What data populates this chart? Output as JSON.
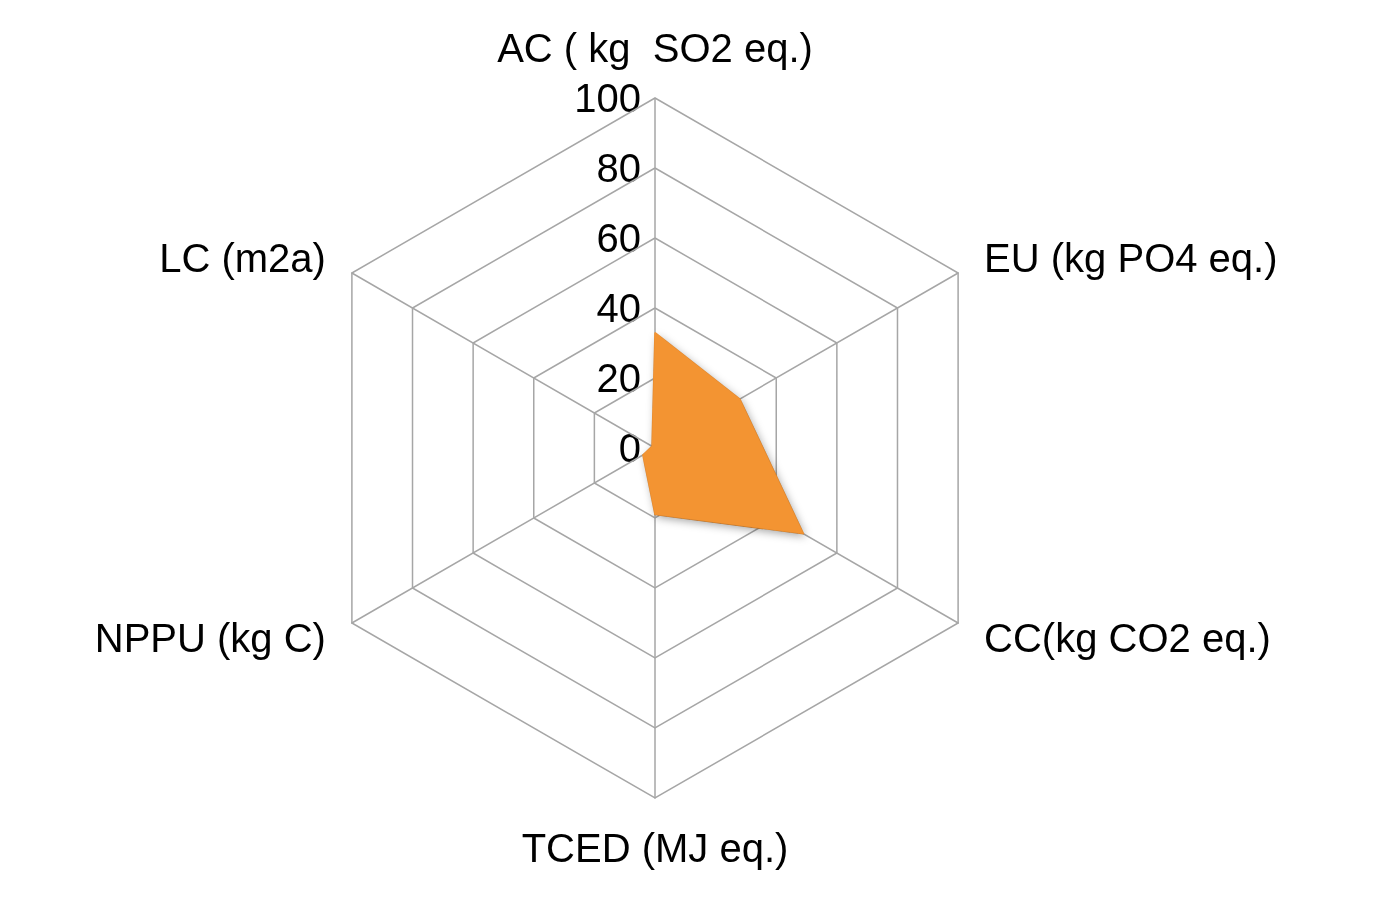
{
  "chart_data": {
    "type": "radar",
    "categories": [
      "AC ( kg  SO2 eq.)",
      "EU (kg PO4 eq.)",
      "CC(kg CO2 eq.)",
      "TCED (MJ eq.)",
      "NPPU (kg C)",
      "LC (m2a)"
    ],
    "series": [
      {
        "color": "#f39433",
        "values": [
          33,
          28,
          49,
          19,
          4,
          1
        ]
      }
    ],
    "ylim": [
      0,
      100
    ],
    "yticks": [
      0,
      20,
      40,
      60,
      80,
      100
    ],
    "grid": true,
    "marker": "none"
  }
}
